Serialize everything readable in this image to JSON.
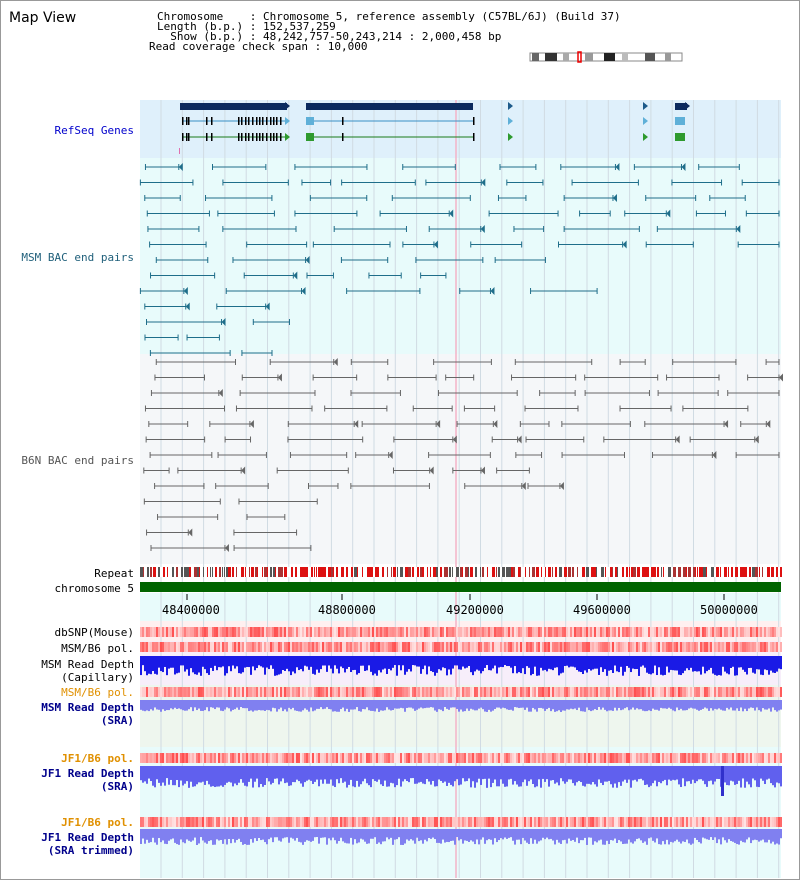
{
  "header": {
    "title": "Map View",
    "chromosome_line": "Chromosome    : Chromosome 5, reference assembly (C57BL/6J) (Build 37)",
    "length_line": "Length (b.p.) : 152,537,259",
    "show_line": "  Show (b.p.) : 48,242,757-50,243,214 : 2,000,458 bp",
    "coverage_line": "Read coverage check span : 10,000"
  },
  "tracks": {
    "refseq": "RefSeq Genes",
    "msm_bac": "MSM BAC end pairs",
    "b6n_bac": "B6N BAC end pairs",
    "repeat": "Repeat",
    "chromosome": "chromosome 5",
    "dbsnp": "dbSNP(Mouse)",
    "msm_b6_pol_1": "MSM/B6 pol.",
    "msm_depth_cap_1": "MSM Read Depth",
    "msm_depth_cap_2": "(Capillary)",
    "msm_b6_pol_2": "MSM/B6 pol.",
    "msm_depth_sra_1": "MSM Read Depth",
    "msm_depth_sra_2": "(SRA)",
    "jf1_pol_1": "JF1/B6 pol.",
    "jf1_depth_1": "JF1 Read Depth",
    "jf1_depth_2": "(SRA)",
    "jf1_pol_2": "JF1/B6 pol.",
    "jf1_trim_1": "JF1 Read Depth",
    "jf1_trim_2": "(SRA trimmed)"
  },
  "axis": {
    "ticks": [
      "48400000",
      "48800000",
      "49200000",
      "49600000",
      "50000000"
    ]
  },
  "colors": {
    "refseq_bg": "#dff0fb",
    "msm_bg": "#e8fbfb",
    "b6n_bg": "#f5f7f9",
    "msm_label": "#1f5f7a",
    "blue_label": "#00008b",
    "orange_label": "#e09000",
    "chrom_green": "#006400",
    "depth_blue": "#1a1ae6",
    "depth_light": "#8080f0"
  }
}
